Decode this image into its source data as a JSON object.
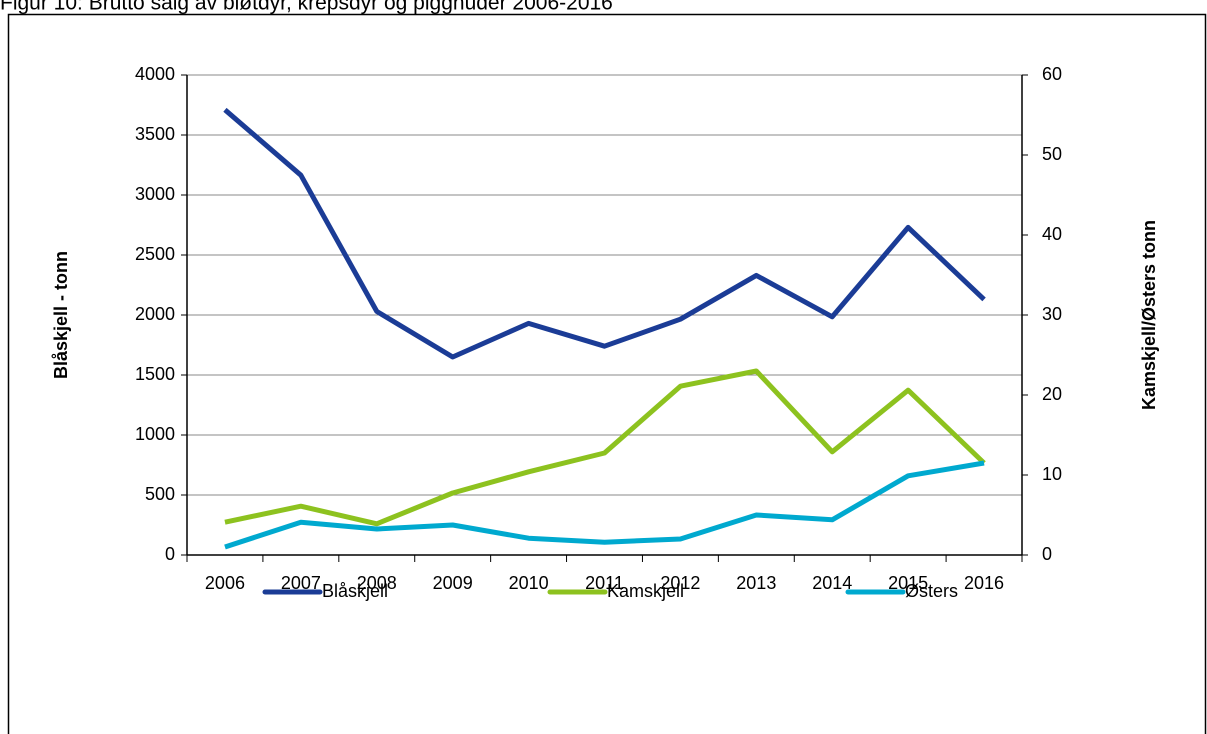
{
  "chart_data": {
    "type": "line",
    "title": "Figur 10: Brutto salg av bløtdyr, krepsdyr og pigghuder 2006-2016",
    "categories": [
      "2006",
      "2007",
      "2008",
      "2009",
      "2010",
      "2011",
      "2012",
      "2013",
      "2014",
      "2015",
      "2016"
    ],
    "series": [
      {
        "name": "Blåskjell",
        "color": "#1b3c96",
        "values": [
          3710,
          3165,
          2030,
          1650,
          1930,
          1740,
          1965,
          2330,
          1985,
          2730,
          2130
        ]
      },
      {
        "name": "Kamskjell",
        "color": "#8dc21f",
        "axis": "y2",
        "values": [
          4.1,
          6.1,
          3.9,
          7.75,
          10.4,
          12.75,
          21.1,
          23,
          12.9,
          20.6,
          11.5
        ]
      },
      {
        "name": "Østers",
        "color": "#00a9cf",
        "axis": "y2",
        "values": [
          1,
          4.1,
          3.25,
          3.75,
          2.1,
          1.6,
          2,
          5,
          4.4,
          9.9,
          11.5
        ]
      }
    ],
    "ylabel": "Blåskjell - tonn",
    "y2label": "Kamskjell/Østers tonn",
    "ylim": [
      0,
      4000
    ],
    "yticks": [
      0,
      500,
      1000,
      1500,
      2000,
      2500,
      3000,
      3500,
      4000
    ],
    "y2lim": [
      0,
      60
    ],
    "y2ticks": [
      0,
      10,
      20,
      30,
      40,
      50,
      60
    ],
    "grid": true,
    "legend": "bottom"
  }
}
